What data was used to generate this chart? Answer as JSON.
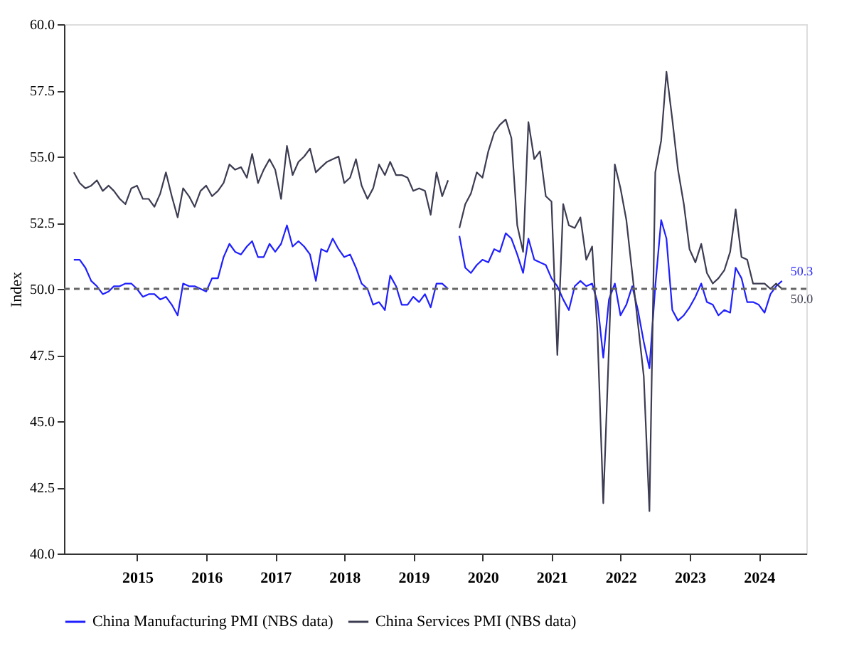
{
  "chart_data": {
    "type": "line",
    "ylabel": "Index",
    "legend": "bottom",
    "grid": false,
    "line_style": "solid",
    "marker": "none",
    "x": [
      "2014-08",
      "2014-09",
      "2014-10",
      "2014-11",
      "2014-12",
      "2015-01",
      "2015-02",
      "2015-03",
      "2015-04",
      "2015-05",
      "2015-06",
      "2015-07",
      "2015-08",
      "2015-09",
      "2015-10",
      "2015-11",
      "2015-12",
      "2016-01",
      "2016-02",
      "2016-03",
      "2016-04",
      "2016-05",
      "2016-06",
      "2016-07",
      "2016-08",
      "2016-09",
      "2016-10",
      "2016-11",
      "2016-12",
      "2017-01",
      "2017-02",
      "2017-03",
      "2017-04",
      "2017-05",
      "2017-06",
      "2017-07",
      "2017-08",
      "2017-09",
      "2017-10",
      "2017-11",
      "2017-12",
      "2018-01",
      "2018-02",
      "2018-03",
      "2018-04",
      "2018-05",
      "2018-06",
      "2018-07",
      "2018-08",
      "2018-09",
      "2018-10",
      "2018-11",
      "2018-12",
      "2019-01",
      "2019-02",
      "2019-03",
      "2019-04",
      "2019-05",
      "2019-06",
      "2019-07",
      "2019-08",
      "2019-09",
      "2019-10",
      "2019-11",
      "2019-12",
      "2020-01",
      "2020-02",
      "2020-03",
      "2020-04",
      "2020-05",
      "2020-06",
      "2020-07",
      "2020-08",
      "2020-09",
      "2020-10",
      "2020-11",
      "2020-12",
      "2021-01",
      "2021-02",
      "2021-03",
      "2021-04",
      "2021-05",
      "2021-06",
      "2021-07",
      "2021-08",
      "2021-09",
      "2021-10",
      "2021-11",
      "2021-12",
      "2022-01",
      "2022-02",
      "2022-03",
      "2022-04",
      "2022-05",
      "2022-06",
      "2022-07",
      "2022-08",
      "2022-09",
      "2022-10",
      "2022-11",
      "2022-12",
      "2023-01",
      "2023-02",
      "2023-03",
      "2023-04",
      "2023-05",
      "2023-06",
      "2023-07",
      "2023-08",
      "2023-09",
      "2023-10",
      "2023-11",
      "2023-12",
      "2024-01",
      "2024-02",
      "2024-03",
      "2024-04",
      "2024-05",
      "2024-06",
      "2024-07",
      "2024-08",
      "2024-09",
      "2024-10",
      "2024-11"
    ],
    "series": [
      {
        "name": "China Manufacturing PMI (NBS data)",
        "color": "#1f1fff",
        "values": [
          51.1,
          51.1,
          50.8,
          50.3,
          50.1,
          49.8,
          49.9,
          50.1,
          50.1,
          50.2,
          50.2,
          50.0,
          49.7,
          49.8,
          49.8,
          49.6,
          49.7,
          49.4,
          49.0,
          50.2,
          50.1,
          50.1,
          50.0,
          49.9,
          50.4,
          50.4,
          51.2,
          51.7,
          51.4,
          51.3,
          51.6,
          51.8,
          51.2,
          51.2,
          51.7,
          51.4,
          51.7,
          52.4,
          51.6,
          51.8,
          51.6,
          51.3,
          50.3,
          51.5,
          51.4,
          51.9,
          51.5,
          51.2,
          51.3,
          50.8,
          50.2,
          50.0,
          49.4,
          49.5,
          49.2,
          50.5,
          50.1,
          49.4,
          49.4,
          49.7,
          49.5,
          49.8,
          49.3,
          50.2,
          50.2,
          50.0,
          null,
          52.0,
          50.8,
          50.6,
          50.9,
          51.1,
          51.0,
          51.5,
          51.4,
          52.1,
          51.9,
          51.3,
          50.6,
          51.9,
          51.1,
          51.0,
          50.9,
          50.4,
          50.1,
          49.6,
          49.2,
          50.1,
          50.3,
          50.1,
          50.2,
          49.5,
          47.4,
          49.6,
          50.2,
          49.0,
          49.4,
          50.1,
          49.2,
          48.0,
          47.0,
          50.1,
          52.6,
          51.9,
          49.2,
          48.8,
          49.0,
          49.3,
          49.7,
          50.2,
          49.5,
          49.4,
          49.0,
          49.2,
          49.1,
          50.8,
          50.4,
          49.5,
          49.5,
          49.4,
          49.1,
          49.8,
          50.1,
          50.3
        ]
      },
      {
        "name": "China Services PMI (NBS data)",
        "color": "#3c3c52",
        "values": [
          54.4,
          54.0,
          53.8,
          53.9,
          54.1,
          53.7,
          53.9,
          53.7,
          53.4,
          53.2,
          53.8,
          53.9,
          53.4,
          53.4,
          53.1,
          53.6,
          54.4,
          53.5,
          52.7,
          53.8,
          53.5,
          53.1,
          53.7,
          53.9,
          53.5,
          53.7,
          54.0,
          54.7,
          54.5,
          54.6,
          54.2,
          55.1,
          54.0,
          54.5,
          54.9,
          54.5,
          53.4,
          55.4,
          54.3,
          54.8,
          55.0,
          55.3,
          54.4,
          54.6,
          54.8,
          54.9,
          55.0,
          54.0,
          54.2,
          54.9,
          53.9,
          53.4,
          53.8,
          54.7,
          54.3,
          54.8,
          54.3,
          54.3,
          54.2,
          53.7,
          53.8,
          53.7,
          52.8,
          54.4,
          53.5,
          54.1,
          null,
          52.3,
          53.2,
          53.6,
          54.4,
          54.2,
          55.2,
          55.9,
          56.2,
          56.4,
          55.7,
          52.4,
          51.4,
          56.3,
          54.9,
          55.2,
          53.5,
          53.3,
          47.5,
          53.2,
          52.4,
          52.3,
          52.7,
          51.1,
          51.6,
          48.4,
          41.9,
          47.8,
          54.7,
          53.8,
          52.6,
          50.6,
          48.7,
          46.7,
          41.6,
          54.4,
          55.6,
          58.2,
          56.4,
          54.5,
          53.2,
          51.5,
          51.0,
          51.7,
          50.6,
          50.2,
          50.4,
          50.7,
          51.4,
          53.0,
          51.2,
          51.1,
          50.2,
          50.2,
          50.2,
          50.0,
          50.2,
          50.0
        ]
      }
    ],
    "xlim": [
      "2014-06-10",
      "2025-03-10"
    ],
    "xticks": [
      {
        "value": "2015-07-02",
        "label": "2015"
      },
      {
        "value": "2016-07-02",
        "label": "2016"
      },
      {
        "value": "2017-07-02",
        "label": "2017"
      },
      {
        "value": "2018-07-02",
        "label": "2018"
      },
      {
        "value": "2019-07-02",
        "label": "2019"
      },
      {
        "value": "2020-07-02",
        "label": "2020"
      },
      {
        "value": "2021-07-02",
        "label": "2021"
      },
      {
        "value": "2022-07-02",
        "label": "2022"
      },
      {
        "value": "2023-07-02",
        "label": "2023"
      },
      {
        "value": "2024-07-02",
        "label": "2024"
      }
    ],
    "ylim": [
      40,
      60
    ],
    "yticks": [
      {
        "value": 40,
        "label": "40.0"
      },
      {
        "value": 42.5,
        "label": "42.5"
      },
      {
        "value": 45,
        "label": "45.0"
      },
      {
        "value": 47.5,
        "label": "47.5"
      },
      {
        "value": 50,
        "label": "50.0"
      },
      {
        "value": 52.5,
        "label": "52.5"
      },
      {
        "value": 55,
        "label": "55.0"
      },
      {
        "value": 57.5,
        "label": "57.5"
      },
      {
        "value": 60,
        "label": "60.0"
      }
    ],
    "ref_lines": [
      {
        "axis": "y",
        "value": 50,
        "color": "#666666",
        "line_style": "dashed"
      }
    ],
    "annotations": [
      {
        "text": "50.3",
        "x": "2024-11",
        "y": 50.3
      },
      {
        "text": "50.0",
        "x": "2024-11",
        "y": 50.0
      }
    ]
  }
}
